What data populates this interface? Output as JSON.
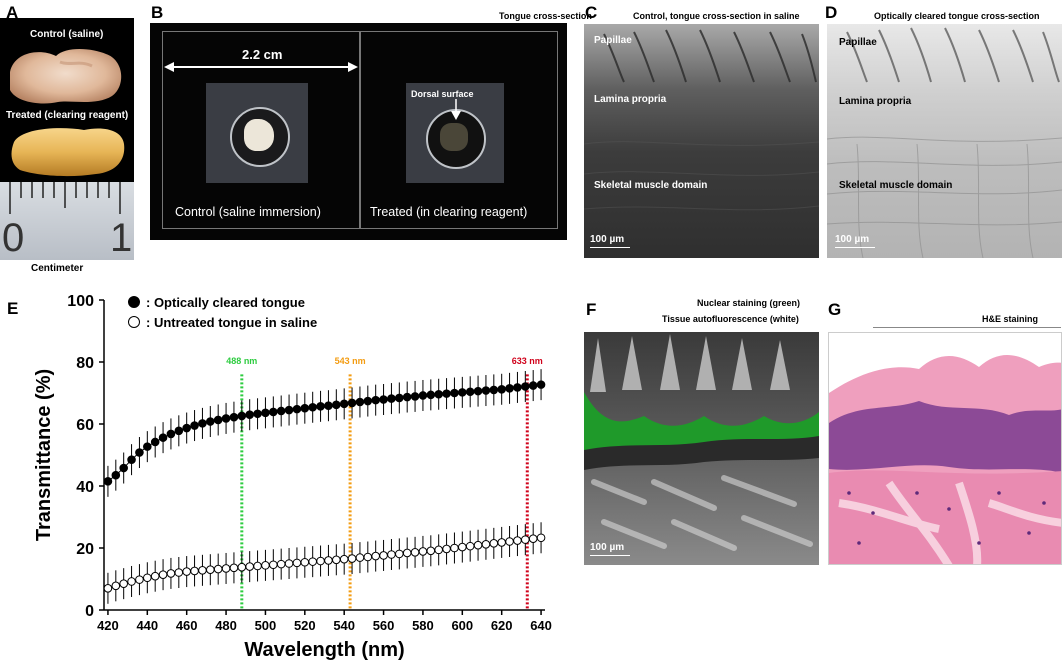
{
  "panels": {
    "A": {
      "letter": "A",
      "control_label": "Control (saline)",
      "treated_label": "Treated (clearing reagent)",
      "ruler_numbers": [
        "0",
        "1"
      ],
      "unit_label": "Centimeter"
    },
    "B": {
      "letter": "B",
      "title": "Tongue cross-section",
      "width_label": "2.2 cm",
      "dorsal_label": "Dorsal surface",
      "control_caption": "Control (saline immersion)",
      "treated_caption": "Treated (in clearing reagent)"
    },
    "C": {
      "letter": "C",
      "title": "Control, tongue cross-section in saline",
      "labels": [
        "Papillae",
        "Lamina propria",
        "Skeletal muscle domain"
      ],
      "scale_bar": "100 µm"
    },
    "D": {
      "letter": "D",
      "title": "Optically cleared tongue cross-section",
      "labels": [
        "Papillae",
        "Lamina propria",
        "Skeletal muscle domain"
      ],
      "scale_bar": "100 µm"
    },
    "E": {
      "letter": "E"
    },
    "F": {
      "letter": "F",
      "title_line1": "Nuclear staining (green)",
      "title_line2": "Tissue autofluorescence (white)",
      "scale_bar": "100 µm"
    },
    "G": {
      "letter": "G",
      "title": "H&E staining"
    }
  },
  "chart_data": {
    "type": "line",
    "xlabel": "Wavelength (nm)",
    "ylabel": "Transmittance (%)",
    "xlim": [
      418,
      642
    ],
    "ylim": [
      0,
      100
    ],
    "xticks": [
      420,
      440,
      460,
      480,
      500,
      520,
      540,
      560,
      580,
      600,
      620,
      640
    ],
    "yticks": [
      0,
      20,
      40,
      60,
      80,
      100
    ],
    "legend_position": "top-left",
    "x": [
      420,
      424,
      428,
      432,
      436,
      440,
      444,
      448,
      452,
      456,
      460,
      464,
      468,
      472,
      476,
      480,
      484,
      488,
      492,
      496,
      500,
      504,
      508,
      512,
      516,
      520,
      524,
      528,
      532,
      536,
      540,
      544,
      548,
      552,
      556,
      560,
      564,
      568,
      572,
      576,
      580,
      584,
      588,
      592,
      596,
      600,
      604,
      608,
      612,
      616,
      620,
      624,
      628,
      632,
      636,
      640
    ],
    "series": [
      {
        "name": "Optically cleared tongue",
        "marker": "filled",
        "values": [
          41.5,
          43.5,
          45.8,
          48.5,
          50.8,
          52.7,
          54.2,
          55.6,
          56.8,
          57.8,
          58.7,
          59.5,
          60.2,
          60.8,
          61.3,
          61.8,
          62.2,
          62.6,
          63.0,
          63.3,
          63.6,
          63.9,
          64.2,
          64.5,
          64.8,
          65.1,
          65.4,
          65.7,
          65.9,
          66.2,
          66.5,
          66.8,
          67.1,
          67.4,
          67.7,
          67.9,
          68.2,
          68.4,
          68.7,
          68.9,
          69.2,
          69.4,
          69.6,
          69.8,
          70.0,
          70.2,
          70.4,
          70.6,
          70.8,
          71.0,
          71.2,
          71.5,
          71.8,
          72.1,
          72.4,
          72.7
        ],
        "error": 5
      },
      {
        "name": "Untreated tongue in saline",
        "marker": "open",
        "values": [
          7.0,
          7.8,
          8.5,
          9.2,
          9.8,
          10.4,
          10.9,
          11.4,
          11.8,
          12.1,
          12.4,
          12.6,
          12.8,
          13.0,
          13.2,
          13.4,
          13.6,
          13.8,
          14.0,
          14.2,
          14.4,
          14.6,
          14.8,
          15.0,
          15.2,
          15.4,
          15.6,
          15.8,
          16.0,
          16.2,
          16.4,
          16.6,
          16.9,
          17.1,
          17.4,
          17.6,
          17.9,
          18.1,
          18.4,
          18.6,
          18.9,
          19.1,
          19.4,
          19.7,
          20.0,
          20.3,
          20.6,
          20.9,
          21.2,
          21.5,
          21.8,
          22.1,
          22.4,
          22.7,
          23.0,
          23.3
        ],
        "error": 5
      }
    ],
    "markers": [
      {
        "x": 488,
        "label": "488 nm",
        "color": "#2ecc40"
      },
      {
        "x": 543,
        "label": "543 nm",
        "color": "#f39c12"
      },
      {
        "x": 633,
        "label": "633 nm",
        "color": "#d0021b"
      }
    ]
  }
}
